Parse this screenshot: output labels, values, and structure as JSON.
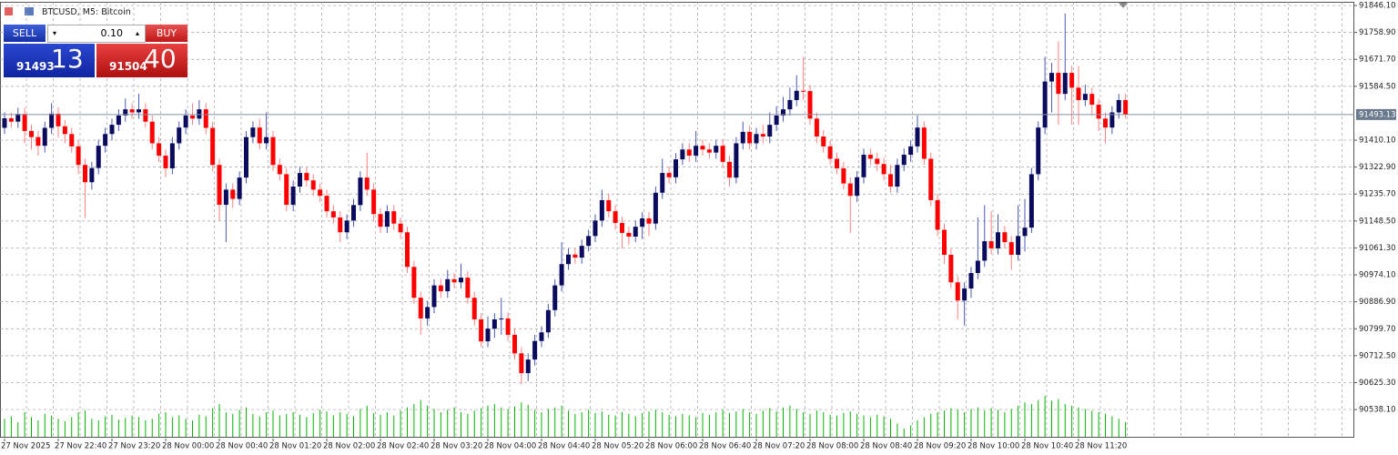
{
  "header": {
    "title": "BTCUSD, M5: Bitcoin"
  },
  "trade_panel": {
    "sell_label": "SELL",
    "buy_label": "BUY",
    "lot": "0.10",
    "bid_main": "91493",
    "bid_pips": "13",
    "ask_main": "91504",
    "ask_pips": "40"
  },
  "chart_data": {
    "type": "candlestick",
    "categories": [
      "27 Nov 2025",
      null,
      null,
      null,
      null,
      null,
      null,
      null,
      "27 Nov 22:40",
      null,
      null,
      null,
      null,
      null,
      null,
      null,
      "27 Nov 23:20",
      null,
      null,
      null,
      null,
      null,
      null,
      null,
      "28 Nov 00:00",
      null,
      null,
      null,
      null,
      null,
      null,
      null,
      "28 Nov 00:40",
      null,
      null,
      null,
      null,
      null,
      null,
      null,
      "28 Nov 01:20",
      null,
      null,
      null,
      null,
      null,
      null,
      null,
      "28 Nov 02:00",
      null,
      null,
      null,
      null,
      null,
      null,
      null,
      "28 Nov 02:40",
      null,
      null,
      null,
      null,
      null,
      null,
      null,
      "28 Nov 03:20",
      null,
      null,
      null,
      null,
      null,
      null,
      null,
      "28 Nov 04:00",
      null,
      null,
      null,
      null,
      null,
      null,
      null,
      "28 Nov 04:40",
      null,
      null,
      null,
      null,
      null,
      null,
      null,
      "28 Nov 05:20",
      null,
      null,
      null,
      null,
      null,
      null,
      null,
      "28 Nov 06:00",
      null,
      null,
      null,
      null,
      null,
      null,
      null,
      "28 Nov 06:40",
      null,
      null,
      null,
      null,
      null,
      null,
      null,
      "28 Nov 07:20",
      null,
      null,
      null,
      null,
      null,
      null,
      null,
      "28 Nov 08:00",
      null,
      null,
      null,
      null,
      null,
      null,
      null,
      "28 Nov 08:40",
      null,
      null,
      null,
      null,
      null,
      null,
      null,
      "28 Nov 09:20",
      null,
      null,
      null,
      null,
      null,
      null,
      null,
      "28 Nov 10:00",
      null,
      null,
      null,
      null,
      null,
      null,
      null,
      "28 Nov 10:40",
      null,
      null,
      null,
      null,
      null,
      null,
      null,
      "28 Nov 11:20",
      null,
      null,
      null,
      null,
      null,
      null,
      null
    ],
    "open": [
      91450,
      91481,
      91470,
      91495,
      91440,
      91420,
      91392,
      91450,
      91496,
      91455,
      91430,
      91390,
      91330,
      91274,
      91320,
      91392,
      91430,
      91460,
      91490,
      91510,
      91500,
      91510,
      91470,
      91400,
      91360,
      91319,
      91400,
      91451,
      91490,
      91480,
      91510,
      91450,
      91330,
      91201,
      91250,
      91220,
      91289,
      91420,
      91451,
      91400,
      91420,
      91330,
      91300,
      91201,
      91260,
      91304,
      91280,
      91250,
      91230,
      91180,
      91160,
      91112,
      91150,
      91200,
      91289,
      91250,
      91171,
      91130,
      91180,
      91140,
      91112,
      91000,
      90900,
      90833,
      90870,
      90940,
      90921,
      90960,
      90950,
      90965,
      90900,
      90830,
      90759,
      90800,
      90830,
      90833,
      90780,
      90720,
      90656,
      90700,
      90760,
      90788,
      90860,
      90940,
      91009,
      91040,
      91030,
      91068,
      91100,
      91150,
      91216,
      91180,
      91142,
      91110,
      91098,
      91130,
      91157,
      91140,
      91240,
      91304,
      91290,
      91348,
      91380,
      91360,
      91392,
      91380,
      91370,
      91392,
      91340,
      91289,
      91400,
      91437,
      91400,
      91430,
      91422,
      91460,
      91490,
      91510,
      91540,
      91570,
      91569,
      91480,
      91422,
      91390,
      91350,
      91319,
      91270,
      91230,
      91290,
      91363,
      91350,
      91333,
      91300,
      91260,
      91330,
      91363,
      91390,
      91451,
      91350,
      91216,
      91120,
      91039,
      90950,
      90891,
      90930,
      90980,
      91020,
      91083,
      91060,
      91112,
      91080,
      91039,
      91100,
      91127,
      91300,
      91451,
      91600,
      91628,
      91560,
      91628,
      91580,
      91540,
      91560,
      91525,
      91480,
      91451,
      91500,
      91540
    ],
    "high": [
      91500,
      91500,
      91515,
      91515,
      91460,
      91440,
      91470,
      91530,
      91516,
      91475,
      91450,
      91410,
      91350,
      91340,
      91412,
      91450,
      91480,
      91510,
      91545,
      91530,
      91560,
      91530,
      91490,
      91420,
      91380,
      91420,
      91471,
      91510,
      91530,
      91540,
      91530,
      91470,
      91350,
      91270,
      91270,
      91309,
      91440,
      91471,
      91480,
      91500,
      91440,
      91350,
      91320,
      91280,
      91324,
      91324,
      91300,
      91270,
      91250,
      91200,
      91180,
      91170,
      91220,
      91309,
      91370,
      91270,
      91190,
      91200,
      91200,
      91160,
      91130,
      91020,
      90920,
      90890,
      90960,
      90960,
      90990,
      90980,
      91010,
      90985,
      90920,
      90850,
      90840,
      90850,
      90900,
      90853,
      90800,
      90740,
      90720,
      90780,
      90808,
      90880,
      90960,
      91080,
      91060,
      91060,
      91088,
      91120,
      91170,
      91250,
      91236,
      91200,
      91162,
      91130,
      91150,
      91177,
      91177,
      91260,
      91350,
      91324,
      91368,
      91400,
      91400,
      91440,
      91412,
      91400,
      91412,
      91412,
      91360,
      91420,
      91470,
      91457,
      91450,
      91460,
      91500,
      91520,
      91550,
      91580,
      91620,
      91680,
      91589,
      91500,
      91442,
      91410,
      91370,
      91339,
      91290,
      91310,
      91383,
      91383,
      91370,
      91353,
      91330,
      91350,
      91383,
      91410,
      91490,
      91471,
      91370,
      91236,
      91140,
      91059,
      90970,
      90950,
      91000,
      91160,
      91200,
      91180,
      91170,
      91132,
      91100,
      91200,
      91220,
      91320,
      91471,
      91680,
      91660,
      91730,
      91820,
      91650,
      91650,
      91590,
      91580,
      91545,
      91500,
      91520,
      91560,
      91560
    ],
    "low": [
      91430,
      91450,
      91450,
      91400,
      91380,
      91360,
      91370,
      91430,
      91420,
      91400,
      91370,
      91300,
      91160,
      91250,
      91300,
      91370,
      91410,
      91440,
      91470,
      91480,
      91480,
      91450,
      91380,
      91340,
      91290,
      91300,
      91380,
      91430,
      91460,
      91460,
      91430,
      91310,
      91150,
      91080,
      91190,
      91200,
      91270,
      91400,
      91380,
      91380,
      91310,
      91280,
      91180,
      91180,
      91240,
      91260,
      91230,
      91210,
      91160,
      91140,
      91080,
      91090,
      91130,
      91180,
      91230,
      91150,
      91110,
      91110,
      91120,
      91090,
      90980,
      90880,
      90780,
      90810,
      90850,
      90900,
      90900,
      90930,
      90930,
      90880,
      90810,
      90740,
      90740,
      90770,
      90780,
      90760,
      90700,
      90620,
      90630,
      90680,
      90740,
      90770,
      90840,
      90920,
      90990,
      91010,
      91010,
      91050,
      91080,
      91130,
      91160,
      91120,
      91060,
      91070,
      91080,
      91090,
      91100,
      91120,
      91220,
      91270,
      91270,
      91330,
      91340,
      91340,
      91360,
      91350,
      91350,
      91320,
      91260,
      91270,
      91380,
      91380,
      91380,
      91400,
      91400,
      91440,
      91470,
      91490,
      91520,
      91540,
      91460,
      91400,
      91370,
      91330,
      91300,
      91250,
      91110,
      91210,
      91270,
      91330,
      91310,
      91280,
      91240,
      91240,
      91310,
      91340,
      91370,
      91330,
      91196,
      91100,
      91010,
      90930,
      90830,
      90810,
      90900,
      90960,
      91000,
      91040,
      91040,
      91060,
      90990,
      91020,
      91050,
      91110,
      91280,
      91430,
      91500,
      91460,
      91540,
      91460,
      91460,
      91520,
      91490,
      91440,
      91400,
      91430,
      91480,
      91480
    ],
    "close": [
      91481,
      91470,
      91495,
      91440,
      91420,
      91392,
      91450,
      91496,
      91455,
      91430,
      91390,
      91330,
      91274,
      91320,
      91392,
      91430,
      91460,
      91490,
      91510,
      91500,
      91510,
      91470,
      91400,
      91360,
      91319,
      91400,
      91451,
      91490,
      91480,
      91510,
      91450,
      91330,
      91201,
      91250,
      91220,
      91289,
      91420,
      91451,
      91400,
      91420,
      91330,
      91300,
      91201,
      91260,
      91304,
      91280,
      91250,
      91230,
      91180,
      91160,
      91112,
      91150,
      91200,
      91289,
      91250,
      91171,
      91130,
      91180,
      91140,
      91112,
      91000,
      90900,
      90833,
      90870,
      90940,
      90921,
      90960,
      90950,
      90965,
      90900,
      90830,
      90759,
      90800,
      90830,
      90833,
      90780,
      90720,
      90656,
      90700,
      90760,
      90788,
      90860,
      90940,
      91009,
      91040,
      91030,
      91068,
      91100,
      91150,
      91216,
      91180,
      91142,
      91110,
      91098,
      91130,
      91157,
      91140,
      91240,
      91304,
      91290,
      91348,
      91380,
      91360,
      91392,
      91380,
      91370,
      91392,
      91340,
      91289,
      91400,
      91437,
      91400,
      91430,
      91422,
      91460,
      91490,
      91510,
      91540,
      91570,
      91569,
      91480,
      91422,
      91390,
      91350,
      91319,
      91270,
      91230,
      91290,
      91363,
      91350,
      91333,
      91300,
      91260,
      91330,
      91363,
      91390,
      91451,
      91350,
      91216,
      91120,
      91039,
      90950,
      90891,
      90930,
      90980,
      91020,
      91083,
      91060,
      91112,
      91080,
      91039,
      91100,
      91127,
      91300,
      91451,
      91600,
      91628,
      91560,
      91628,
      91580,
      91540,
      91560,
      91525,
      91480,
      91451,
      91500,
      91540,
      91493.13
    ],
    "volume": [
      22,
      25,
      18,
      30,
      24,
      20,
      28,
      26,
      22,
      19,
      24,
      30,
      32,
      22,
      20,
      25,
      27,
      21,
      23,
      26,
      24,
      20,
      22,
      28,
      30,
      24,
      26,
      22,
      20,
      27,
      25,
      35,
      40,
      30,
      28,
      33,
      36,
      28,
      25,
      30,
      32,
      26,
      28,
      30,
      27,
      24,
      29,
      33,
      31,
      26,
      30,
      28,
      25,
      34,
      38,
      29,
      27,
      30,
      26,
      32,
      36,
      40,
      45,
      38,
      34,
      30,
      33,
      36,
      30,
      28,
      32,
      35,
      38,
      40,
      36,
      34,
      37,
      42,
      39,
      33,
      30,
      34,
      36,
      38,
      32,
      28,
      30,
      33,
      29,
      31,
      27,
      26,
      30,
      28,
      25,
      29,
      31,
      33,
      30,
      27,
      25,
      28,
      26,
      24,
      29,
      27,
      30,
      33,
      29,
      31,
      34,
      30,
      28,
      32,
      35,
      31,
      36,
      38,
      34,
      30,
      28,
      32,
      30,
      27,
      26,
      29,
      31,
      28,
      26,
      24,
      27,
      25,
      22,
      16,
      10,
      14,
      20,
      24,
      28,
      30,
      32,
      35,
      33,
      30,
      34,
      36,
      32,
      35,
      33,
      30,
      34,
      38,
      42,
      40,
      45,
      50,
      44,
      46,
      40,
      38,
      36,
      34,
      32,
      30,
      28,
      25,
      22,
      18
    ],
    "up_color": "#0b0b5e",
    "down_color": "#ff0000",
    "volume_color": "#00b400",
    "ylim": [
      90444,
      91858
    ],
    "yticks": [
      {
        "value": 91846.1,
        "label": "91846.10"
      },
      {
        "value": 91758.9,
        "label": "91758.90"
      },
      {
        "value": 91671.7,
        "label": "91671.70"
      },
      {
        "value": 91584.5,
        "label": "91584.50"
      },
      {
        "value": 91410.1,
        "label": "91410.10"
      },
      {
        "value": 91322.9,
        "label": "91322.90"
      },
      {
        "value": 91235.7,
        "label": "91235.70"
      },
      {
        "value": 91148.5,
        "label": "91148.50"
      },
      {
        "value": 91061.3,
        "label": "91061.30"
      },
      {
        "value": 90974.1,
        "label": "90974.10"
      },
      {
        "value": 90886.9,
        "label": "90886.90"
      },
      {
        "value": 90799.7,
        "label": "90799.70"
      },
      {
        "value": 90712.5,
        "label": "90712.50"
      },
      {
        "value": 90625.3,
        "label": "90625.30"
      },
      {
        "value": 90538.1,
        "label": "90538.10"
      }
    ],
    "grid": true,
    "bid_line": {
      "value": 91493.13,
      "label": "91493.13"
    }
  }
}
